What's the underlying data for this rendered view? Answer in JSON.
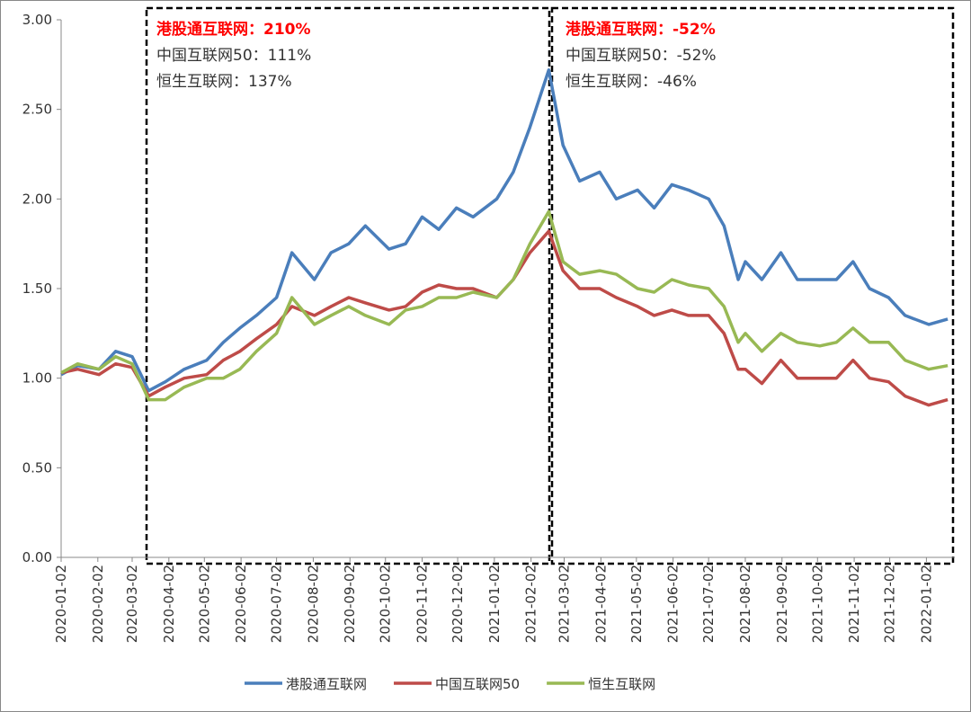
{
  "chart_data": {
    "type": "line",
    "x": [
      "2020-01-02",
      "2020-01-16",
      "2020-02-03",
      "2020-02-17",
      "2020-03-02",
      "2020-03-16",
      "2020-03-30",
      "2020-04-15",
      "2020-05-04",
      "2020-05-18",
      "2020-06-01",
      "2020-06-15",
      "2020-07-02",
      "2020-07-15",
      "2020-08-03",
      "2020-08-17",
      "2020-09-01",
      "2020-09-15",
      "2020-10-05",
      "2020-10-19",
      "2020-11-02",
      "2020-11-16",
      "2020-12-01",
      "2020-12-15",
      "2021-01-04",
      "2021-01-18",
      "2021-02-01",
      "2021-02-17",
      "2021-03-01",
      "2021-03-15",
      "2021-04-01",
      "2021-04-15",
      "2021-05-03",
      "2021-05-17",
      "2021-06-01",
      "2021-06-15",
      "2021-07-02",
      "2021-07-15",
      "2021-07-27",
      "2021-08-02",
      "2021-08-16",
      "2021-09-01",
      "2021-09-15",
      "2021-10-04",
      "2021-10-18",
      "2021-11-01",
      "2021-11-15",
      "2021-12-01",
      "2021-12-15",
      "2022-01-04",
      "2022-01-20"
    ],
    "series": [
      {
        "name": "港股通互联网",
        "color": "#4a7ebb",
        "values": [
          1.02,
          1.07,
          1.05,
          1.15,
          1.12,
          0.93,
          0.98,
          1.05,
          1.1,
          1.2,
          1.28,
          1.35,
          1.45,
          1.7,
          1.55,
          1.7,
          1.75,
          1.85,
          1.72,
          1.75,
          1.9,
          1.83,
          1.95,
          1.9,
          2.0,
          2.15,
          2.4,
          2.72,
          2.3,
          2.1,
          2.15,
          2.0,
          2.05,
          1.95,
          2.08,
          2.05,
          2.0,
          1.85,
          1.55,
          1.65,
          1.55,
          1.7,
          1.55,
          1.55,
          1.55,
          1.65,
          1.5,
          1.45,
          1.35,
          1.3,
          1.33
        ]
      },
      {
        "name": "中国互联网50",
        "color": "#be4b48",
        "values": [
          1.03,
          1.05,
          1.02,
          1.08,
          1.06,
          0.9,
          0.95,
          1.0,
          1.02,
          1.1,
          1.15,
          1.22,
          1.3,
          1.4,
          1.35,
          1.4,
          1.45,
          1.42,
          1.38,
          1.4,
          1.48,
          1.52,
          1.5,
          1.5,
          1.45,
          1.55,
          1.7,
          1.82,
          1.6,
          1.5,
          1.5,
          1.45,
          1.4,
          1.35,
          1.38,
          1.35,
          1.35,
          1.25,
          1.05,
          1.05,
          0.97,
          1.1,
          1.0,
          1.0,
          1.0,
          1.1,
          1.0,
          0.98,
          0.9,
          0.85,
          0.88
        ]
      },
      {
        "name": "恒生互联网",
        "color": "#98b954",
        "values": [
          1.03,
          1.08,
          1.05,
          1.12,
          1.08,
          0.88,
          0.88,
          0.95,
          1.0,
          1.0,
          1.05,
          1.15,
          1.25,
          1.45,
          1.3,
          1.35,
          1.4,
          1.35,
          1.3,
          1.38,
          1.4,
          1.45,
          1.45,
          1.48,
          1.45,
          1.55,
          1.75,
          1.93,
          1.65,
          1.58,
          1.6,
          1.58,
          1.5,
          1.48,
          1.55,
          1.52,
          1.5,
          1.4,
          1.2,
          1.25,
          1.15,
          1.25,
          1.2,
          1.18,
          1.2,
          1.28,
          1.2,
          1.2,
          1.1,
          1.05,
          1.07
        ]
      }
    ],
    "xlim": [
      "2020-01-02",
      "2022-01-26"
    ],
    "xticks": [
      "2020-01-02",
      "2020-02-02",
      "2020-03-02",
      "2020-04-02",
      "2020-05-02",
      "2020-06-02",
      "2020-07-02",
      "2020-08-02",
      "2020-09-02",
      "2020-10-02",
      "2020-11-02",
      "2020-12-02",
      "2021-01-02",
      "2021-02-02",
      "2021-03-02",
      "2021-04-02",
      "2021-05-02",
      "2021-06-02",
      "2021-07-02",
      "2021-08-02",
      "2021-09-02",
      "2021-10-02",
      "2021-11-02",
      "2021-12-02",
      "2022-01-02"
    ],
    "ylim": [
      0,
      3
    ],
    "yticks": [
      {
        "value": 0,
        "label": "0.00"
      },
      {
        "value": 0.5,
        "label": "0.50"
      },
      {
        "value": 1,
        "label": "1.00"
      },
      {
        "value": 1.5,
        "label": "1.50"
      },
      {
        "value": 2,
        "label": "2.00"
      },
      {
        "value": 2.5,
        "label": "2.50"
      },
      {
        "value": 3,
        "label": "3.00"
      }
    ],
    "legend": "bottom",
    "annotations": [
      {
        "lines": [
          "港股通互联网：210%",
          "中国互联网50：111%",
          "恒生互联网：137%"
        ]
      },
      {
        "lines": [
          "港股通互联网：-52%",
          "中国互联网50：-52%",
          "恒生互联网：-46%"
        ]
      }
    ]
  }
}
